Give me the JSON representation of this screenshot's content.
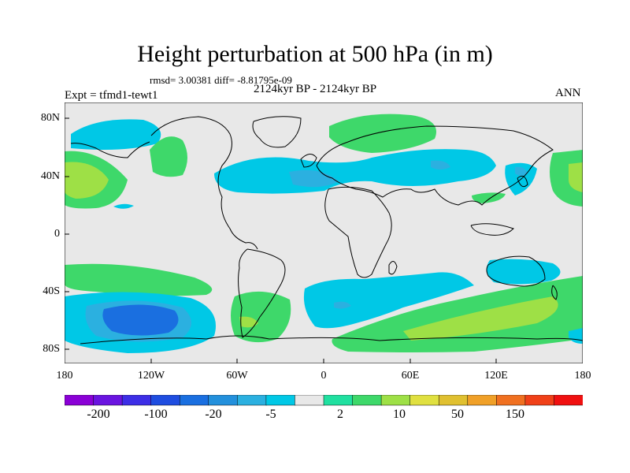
{
  "title": "Height perturbation at 500 hPa (in m)",
  "stats": "rmsd= 3.00381 diff= -8.81795e-09",
  "period": "2124kyr BP - 2124kyr BP",
  "experiment": "Expt = tfmd1-tewt1",
  "season": "ANN",
  "lat_labels": [
    "80N",
    "40N",
    "0",
    "40S",
    "80S"
  ],
  "lon_labels": [
    "180",
    "120W",
    "60W",
    "0",
    "60E",
    "120E",
    "180"
  ],
  "colorbar": {
    "colors": [
      "#8a00d6",
      "#6a14e0",
      "#3d2ee6",
      "#1f4de0",
      "#1a6fe0",
      "#2390dc",
      "#2bb0e0",
      "#00c8e6",
      "#e8e8e8",
      "#20e0a0",
      "#3ed86a",
      "#9ee046",
      "#e0e040",
      "#e0c030",
      "#f0a028",
      "#f07020",
      "#f04018",
      "#f01010"
    ],
    "labels": [
      "-200",
      "-100",
      "-20",
      "-5",
      "2",
      "10",
      "50",
      "150"
    ]
  },
  "colors": {
    "background": "#e8e8e8",
    "light_blue": "#00c8e6",
    "mid_blue": "#2bb0e0",
    "blue": "#1a6fe0",
    "dark_blue": "#1f4de0",
    "teal_green": "#20e0a0",
    "green": "#3ed86a",
    "yellow_green": "#9ee046",
    "coast": "#000000"
  }
}
